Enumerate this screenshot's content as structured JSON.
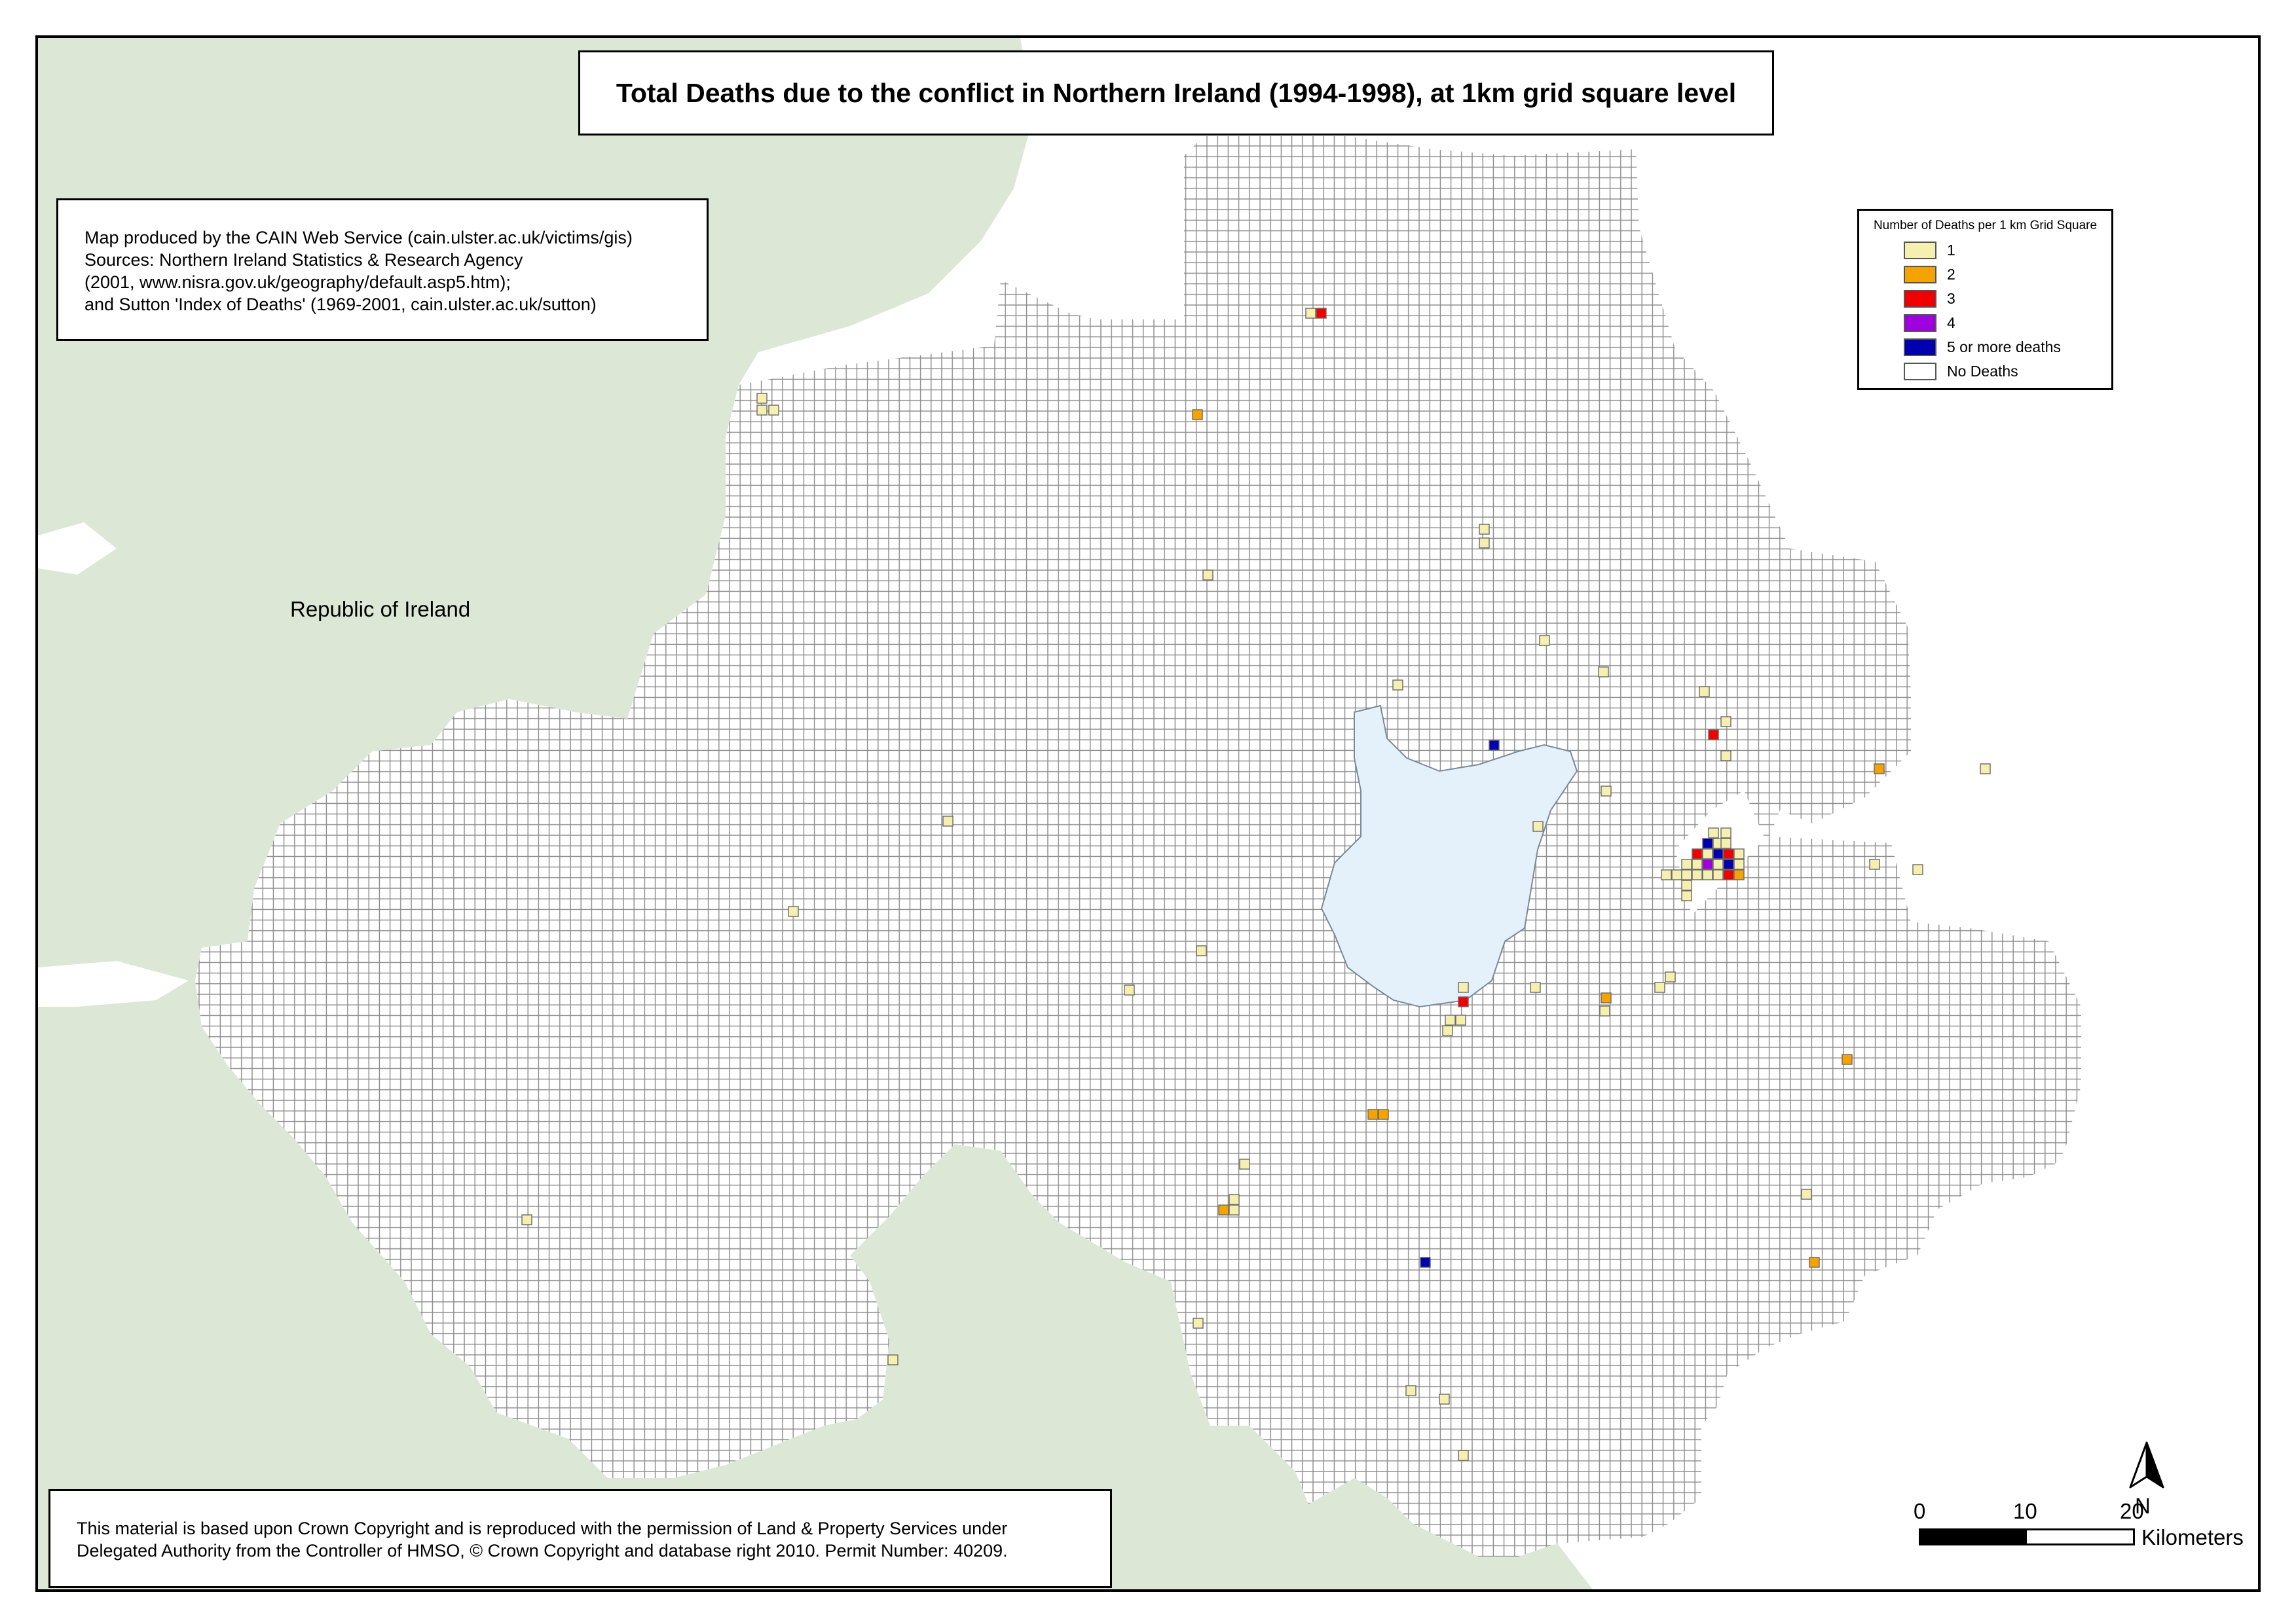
{
  "title": "Total Deaths due to the conflict in Northern Ireland (1994-1998), at 1km grid square level",
  "credits": [
    "Map produced by the CAIN Web Service (cain.ulster.ac.uk/victims/gis)",
    "Sources: Northern Ireland Statistics & Research Agency",
    "(2001, www.nisra.gov.uk/geography/default.asp5.htm);",
    "and Sutton 'Index of Deaths' (1969-2001, cain.ulster.ac.uk/sutton)"
  ],
  "copyright": [
    "This material is based upon Crown Copyright and is reproduced with the permission of Land & Property Services under",
    "Delegated Authority from the Controller of HMSO, © Crown Copyright and database right 2010. Permit Number: 40209."
  ],
  "region_label": "Republic of Ireland",
  "legend": {
    "title": "Number of Deaths per 1 km Grid Square",
    "items": [
      {
        "label": "1",
        "color": "#f5f0b0"
      },
      {
        "label": "2",
        "color": "#f4a300"
      },
      {
        "label": "3",
        "color": "#f00000"
      },
      {
        "label": "4",
        "color": "#a000e0"
      },
      {
        "label": "5 or more deaths",
        "color": "#0000b0"
      },
      {
        "label": "No Deaths",
        "color": "#ffffff"
      }
    ]
  },
  "north_label": "N",
  "scale": {
    "ticks": [
      "0",
      "10",
      "20"
    ],
    "unit": "Kilometers"
  },
  "colors": {
    "land_roi": "#dce8d5",
    "lough": "#e4f1fb",
    "grid_line": "#8a8a8a",
    "sea": "#ffffff"
  },
  "death_squares": [
    {
      "count": 1,
      "n": 2
    },
    {
      "count": 2,
      "n": 1
    },
    {
      "count": 3,
      "n": 1
    },
    {
      "count": 1,
      "n": 1
    },
    {
      "count": 1,
      "n": 1
    },
    {
      "count": 2,
      "n": 1
    },
    {
      "count": 1,
      "n": 1
    },
    {
      "count": 1,
      "n": 1
    },
    {
      "count": 1,
      "n": 1
    },
    {
      "count": 1,
      "n": 1
    },
    {
      "count": 1,
      "n": 1
    },
    {
      "count": 1,
      "n": 1
    },
    {
      "count": 1,
      "n": 1
    },
    {
      "count": 3,
      "n": 1
    },
    {
      "count": 1,
      "n": 1
    },
    {
      "count": 1,
      "n": 1
    },
    {
      "count": 1,
      "n": 1
    },
    {
      "count": 2,
      "n": 1
    },
    {
      "count": 1,
      "n": 1
    },
    {
      "count": 1,
      "n": 1
    },
    {
      "count": 1,
      "n": 1
    },
    {
      "count": 1,
      "n": 1
    },
    {
      "count": 5,
      "n": 1
    },
    {
      "count": 1,
      "n": 1
    },
    {
      "count": 1,
      "n": 1
    },
    {
      "count": 1,
      "n": 1
    },
    {
      "count": 3,
      "n": 1
    },
    {
      "count": 1,
      "n": 1
    },
    {
      "count": 1,
      "n": 1
    },
    {
      "count": 5,
      "n": 1
    },
    {
      "count": 3,
      "n": 1
    },
    {
      "count": 4,
      "n": 1
    },
    {
      "count": 1,
      "n": 1
    },
    {
      "count": 2,
      "n": 1
    },
    {
      "count": 3,
      "n": 1
    },
    {
      "count": 1,
      "n": 1
    },
    {
      "count": 1,
      "n": 1
    },
    {
      "count": 1,
      "n": 1
    },
    {
      "count": 2,
      "n": 1
    },
    {
      "count": 2,
      "n": 1
    },
    {
      "count": 1,
      "n": 1
    },
    {
      "count": 1,
      "n": 1
    },
    {
      "count": 1,
      "n": 1
    },
    {
      "count": 2,
      "n": 1
    },
    {
      "count": 1,
      "n": 1
    },
    {
      "count": 1,
      "n": 1
    },
    {
      "count": 1,
      "n": 1
    },
    {
      "count": 1,
      "n": 1
    },
    {
      "count": 2,
      "n": 1
    },
    {
      "count": 1,
      "n": 1
    },
    {
      "count": 5,
      "n": 1
    },
    {
      "count": 1,
      "n": 1
    },
    {
      "count": 2,
      "n": 1
    },
    {
      "count": 1,
      "n": 1
    },
    {
      "count": 1,
      "n": 1
    },
    {
      "count": 1,
      "n": 1
    },
    {
      "count": 3,
      "n": 1
    },
    {
      "count": 1,
      "n": 1
    },
    {
      "count": 1,
      "n": 1
    },
    {
      "count": 1,
      "n": 1
    },
    {
      "count": 1,
      "n": 1
    },
    {
      "count": 1,
      "n": 1
    },
    {
      "count": 1,
      "n": 1
    },
    {
      "count": 1,
      "n": 1
    },
    {
      "count": 1,
      "n": 1
    },
    {
      "count": 1,
      "n": 1
    },
    {
      "count": 1,
      "n": 1
    },
    {
      "count": 1,
      "n": 1
    },
    {
      "count": 1,
      "n": 1
    },
    {
      "count": 1,
      "n": 1
    },
    {
      "count": 1,
      "n": 1
    },
    {
      "count": 1,
      "n": 1
    }
  ]
}
